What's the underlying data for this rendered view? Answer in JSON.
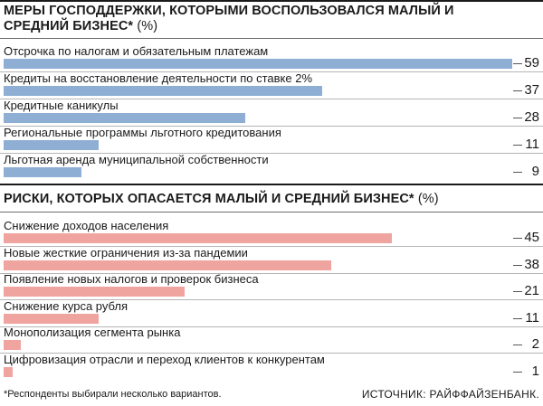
{
  "chart_data": [
    {
      "type": "bar",
      "title": "МЕРЫ ГОСПОДДЕРЖКИ, КОТОРЫМИ ВОСПОЛЬЗОВАЛСЯ МАЛЫЙ И СРЕДНИЙ БИЗНЕС*",
      "unit": "(%)",
      "color": "#8eaed3",
      "xlim": [
        0,
        59
      ],
      "categories": [
        "Отсрочка по налогам и обязательным платежам",
        "Кредиты на восстановление деятельности по ставке 2%",
        "Кредитные каникулы",
        "Региональные программы льготного кредитования",
        "Льготная аренда муниципальной собственности"
      ],
      "values": [
        59,
        37,
        28,
        11,
        9
      ]
    },
    {
      "type": "bar",
      "title": "РИСКИ, КОТОРЫХ ОПАСАЕТСЯ МАЛЫЙ И СРЕДНИЙ БИЗНЕС*",
      "unit": "(%)",
      "color": "#f0a4a0",
      "xlim": [
        0,
        59
      ],
      "categories": [
        "Снижение доходов населения",
        "Новые жесткие ограничения из-за пандемии",
        "Появление новых налогов и проверок бизнеса",
        "Снижение курса рубля",
        "Монополизация сегмента рынка",
        "Цифровизация отрасли и переход клиентов к конкурентам"
      ],
      "values": [
        45,
        38,
        21,
        11,
        2,
        1
      ]
    }
  ],
  "footnote": "*Респонденты выбирали несколько вариантов.",
  "source": "ИСТОЧНИК: РАЙФФАЙЗЕНБАНК."
}
